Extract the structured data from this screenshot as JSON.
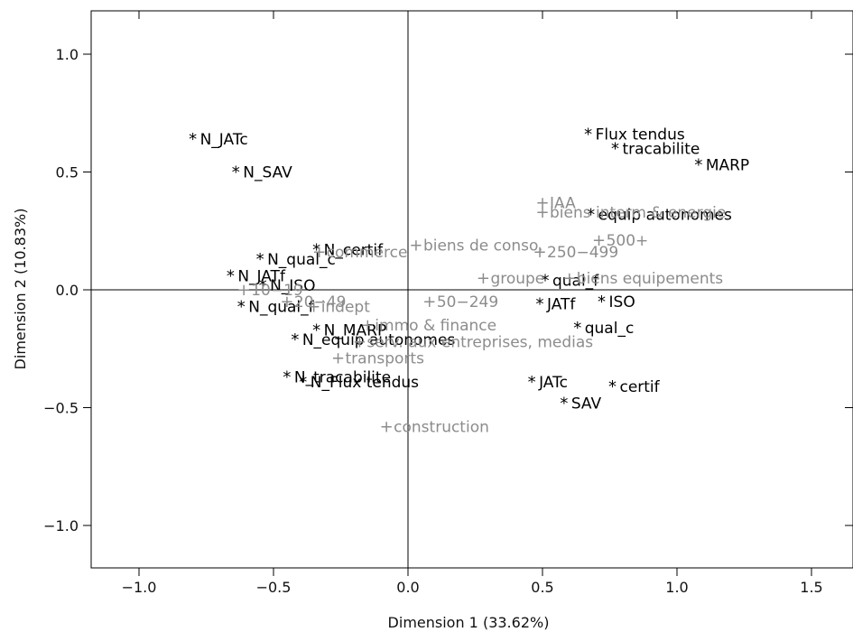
{
  "chart_data": {
    "type": "scatter",
    "title": "",
    "xlabel": "Dimension 1 (33.62%)",
    "ylabel": "Dimension 2 (10.83%)",
    "xlim": [
      -1.18,
      1.65
    ],
    "ylim": [
      -1.18,
      1.18
    ],
    "xticks": [
      -1.0,
      -0.5,
      0.0,
      0.5,
      1.0,
      1.5
    ],
    "xtick_labels": [
      "−1.0",
      "−0.5",
      "0.0",
      "0.5",
      "1.0",
      "1.5"
    ],
    "yticks": [
      -1.0,
      -0.5,
      0.0,
      0.5,
      1.0
    ],
    "ytick_labels": [
      "−1.0",
      "−0.5",
      "0.0",
      "0.5",
      "1.0"
    ],
    "reference_lines": {
      "x": 0,
      "y": 0
    },
    "colors": {
      "active": "#000000",
      "supplementary": "#8c8c8c"
    },
    "series": [
      {
        "marker": "*",
        "points": [
          {
            "label": "N_JATc",
            "x": -0.8,
            "y": 0.64
          },
          {
            "label": "N_SAV",
            "x": -0.64,
            "y": 0.5
          },
          {
            "label": "N_qual_c",
            "x": -0.55,
            "y": 0.13
          },
          {
            "label": "N_certif",
            "x": -0.34,
            "y": 0.17
          },
          {
            "label": "N_JATf",
            "x": -0.66,
            "y": 0.06
          },
          {
            "label": "N_ISO",
            "x": -0.54,
            "y": 0.02
          },
          {
            "label": "N_qual_f",
            "x": -0.62,
            "y": -0.07
          },
          {
            "label": "N_MARP",
            "x": -0.34,
            "y": -0.17
          },
          {
            "label": "N_equip autonomes",
            "x": -0.42,
            "y": -0.21
          },
          {
            "label": "N_tracabilite",
            "x": -0.45,
            "y": -0.37
          },
          {
            "label": "N_Flux tendus",
            "x": -0.39,
            "y": -0.39
          },
          {
            "label": "Flux tendus",
            "x": 0.67,
            "y": 0.66
          },
          {
            "label": "tracabilite",
            "x": 0.77,
            "y": 0.6
          },
          {
            "label": "MARP",
            "x": 1.08,
            "y": 0.53
          },
          {
            "label": "equip autonomes",
            "x": 0.68,
            "y": 0.32
          },
          {
            "label": "qual_f",
            "x": 0.51,
            "y": 0.04
          },
          {
            "label": "JATf",
            "x": 0.49,
            "y": -0.06
          },
          {
            "label": "ISO",
            "x": 0.72,
            "y": -0.05
          },
          {
            "label": "qual_c",
            "x": 0.63,
            "y": -0.16
          },
          {
            "label": "JATc",
            "x": 0.46,
            "y": -0.39
          },
          {
            "label": "certif",
            "x": 0.76,
            "y": -0.41
          },
          {
            "label": "SAV",
            "x": 0.58,
            "y": -0.48
          }
        ]
      },
      {
        "marker": "+",
        "points": [
          {
            "label": "IAA",
            "x": 0.5,
            "y": 0.37
          },
          {
            "label": "biens interm & energie",
            "x": 0.5,
            "y": 0.33
          },
          {
            "label": "biens de conso.",
            "x": 0.03,
            "y": 0.19
          },
          {
            "label": "500+",
            "x": 0.71,
            "y": 0.21
          },
          {
            "label": "250−499",
            "x": 0.49,
            "y": 0.16
          },
          {
            "label": "commerce",
            "x": -0.33,
            "y": 0.16
          },
          {
            "label": "groupe",
            "x": 0.28,
            "y": 0.05
          },
          {
            "label": "biens equipements",
            "x": 0.6,
            "y": 0.05
          },
          {
            "label": "10−19",
            "x": -0.61,
            "y": 0.0
          },
          {
            "label": "20−49",
            "x": -0.45,
            "y": -0.05
          },
          {
            "label": "indept",
            "x": -0.35,
            "y": -0.07
          },
          {
            "label": "50−249",
            "x": 0.08,
            "y": -0.05
          },
          {
            "label": "immo & finance",
            "x": -0.15,
            "y": -0.15
          },
          {
            "label": "serv. aux entreprises, medias",
            "x": -0.18,
            "y": -0.22
          },
          {
            "label": "transports",
            "x": -0.26,
            "y": -0.29
          },
          {
            "label": "construction",
            "x": -0.08,
            "y": -0.58
          }
        ]
      }
    ]
  }
}
